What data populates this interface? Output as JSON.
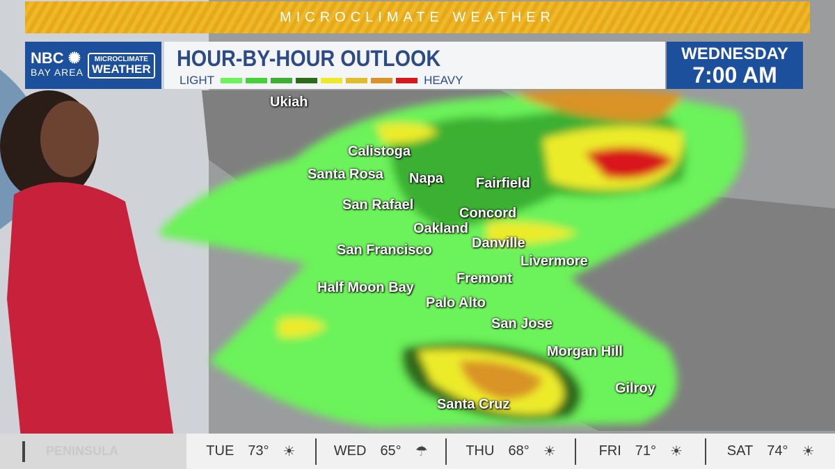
{
  "banner": {
    "title": "MICROCLIMATE WEATHER"
  },
  "logo": {
    "network": "NBC",
    "region": "BAY AREA",
    "brand_top": "MICROCLIMATE",
    "brand_bottom": "WEATHER"
  },
  "header": {
    "title": "HOUR-BY-HOUR OUTLOOK",
    "legend_low": "LIGHT",
    "legend_high": "HEAVY",
    "legend_colors": [
      "#6cf25a",
      "#46d13a",
      "#3bb031",
      "#2d6a1c",
      "#eceb2a",
      "#e0bd2a",
      "#d99326",
      "#d8161e"
    ]
  },
  "time": {
    "day": "WEDNESDAY",
    "time": "7:00 AM"
  },
  "cities": [
    "Ukiah",
    "Calistoga",
    "Santa Rosa",
    "Napa",
    "Fairfield",
    "San Rafael",
    "Concord",
    "Oakland",
    "Danville",
    "San Francisco",
    "Livermore",
    "Fremont",
    "Half Moon Bay",
    "Palo Alto",
    "San Jose",
    "Morgan Hill",
    "Gilroy",
    "Santa Cruz"
  ],
  "forecast": {
    "region": "PENINSULA",
    "days": [
      {
        "day": "TUE",
        "temp": "73°",
        "icon": "partly-sunny-icon"
      },
      {
        "day": "WED",
        "temp": "65°",
        "icon": "rain-cloud-icon"
      },
      {
        "day": "THU",
        "temp": "68°",
        "icon": "partly-sunny-icon"
      },
      {
        "day": "FRI",
        "temp": "71°",
        "icon": "partly-sunny-icon"
      },
      {
        "day": "SAT",
        "temp": "74°",
        "icon": "partly-sunny-icon"
      }
    ]
  }
}
